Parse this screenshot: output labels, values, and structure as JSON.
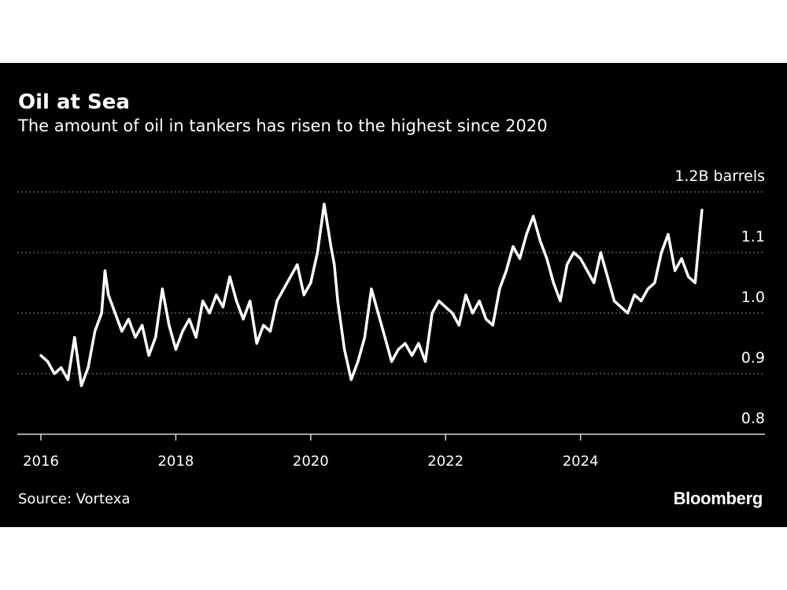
{
  "chart_data": {
    "type": "line",
    "title": "Oil at Sea",
    "subtitle": "The amount of oil in tankers has risen to the highest since 2020",
    "ylabel": "B barrels",
    "yunit_label": "1.2B barrels",
    "ylim": [
      0.8,
      1.2
    ],
    "yticks": [
      {
        "value": 0.8,
        "label": "0.8"
      },
      {
        "value": 0.9,
        "label": "0.9"
      },
      {
        "value": 1.0,
        "label": "1.0"
      },
      {
        "value": 1.1,
        "label": "1.1"
      },
      {
        "value": 1.2,
        "label": "1.2B barrels"
      }
    ],
    "xlim": [
      2016,
      2026.7
    ],
    "xticks": [
      {
        "value": 2016,
        "label": "2016"
      },
      {
        "value": 2018,
        "label": "2018"
      },
      {
        "value": 2020,
        "label": "2020"
      },
      {
        "value": 2022,
        "label": "2022"
      },
      {
        "value": 2024,
        "label": "2024"
      }
    ],
    "grid": true,
    "series": [
      {
        "name": "Oil in tankers",
        "color": "#ffffff",
        "x": [
          2016.0,
          2016.1,
          2016.2,
          2016.3,
          2016.4,
          2016.5,
          2016.6,
          2016.7,
          2016.8,
          2016.9,
          2016.95,
          2017.0,
          2017.1,
          2017.2,
          2017.3,
          2017.4,
          2017.5,
          2017.6,
          2017.7,
          2017.8,
          2017.9,
          2018.0,
          2018.1,
          2018.2,
          2018.3,
          2018.4,
          2018.5,
          2018.6,
          2018.7,
          2018.8,
          2018.9,
          2019.0,
          2019.1,
          2019.2,
          2019.3,
          2019.4,
          2019.5,
          2019.6,
          2019.7,
          2019.8,
          2019.9,
          2020.0,
          2020.1,
          2020.2,
          2020.3,
          2020.35,
          2020.4,
          2020.5,
          2020.6,
          2020.7,
          2020.8,
          2020.9,
          2021.0,
          2021.1,
          2021.2,
          2021.3,
          2021.4,
          2021.5,
          2021.6,
          2021.7,
          2021.8,
          2021.9,
          2022.0,
          2022.1,
          2022.2,
          2022.3,
          2022.4,
          2022.5,
          2022.6,
          2022.7,
          2022.8,
          2022.9,
          2023.0,
          2023.1,
          2023.2,
          2023.3,
          2023.4,
          2023.5,
          2023.6,
          2023.7,
          2023.8,
          2023.9,
          2024.0,
          2024.1,
          2024.2,
          2024.3,
          2024.4,
          2024.5,
          2024.6,
          2024.7,
          2024.8,
          2024.9,
          2025.0,
          2025.1,
          2025.2,
          2025.3,
          2025.4,
          2025.5,
          2025.6,
          2025.7,
          2025.8
        ],
        "values": [
          0.93,
          0.92,
          0.9,
          0.91,
          0.89,
          0.96,
          0.88,
          0.91,
          0.97,
          1.0,
          1.07,
          1.03,
          1.0,
          0.97,
          0.99,
          0.96,
          0.98,
          0.93,
          0.96,
          1.04,
          0.98,
          0.94,
          0.97,
          0.99,
          0.96,
          1.02,
          1.0,
          1.03,
          1.01,
          1.06,
          1.02,
          0.99,
          1.02,
          0.95,
          0.98,
          0.97,
          1.02,
          1.04,
          1.06,
          1.08,
          1.03,
          1.05,
          1.1,
          1.18,
          1.11,
          1.08,
          1.02,
          0.94,
          0.89,
          0.92,
          0.96,
          1.04,
          1.0,
          0.96,
          0.92,
          0.94,
          0.95,
          0.93,
          0.95,
          0.92,
          1.0,
          1.02,
          1.01,
          1.0,
          0.98,
          1.03,
          1.0,
          1.02,
          0.99,
          0.98,
          1.04,
          1.07,
          1.11,
          1.09,
          1.13,
          1.16,
          1.12,
          1.09,
          1.05,
          1.02,
          1.08,
          1.1,
          1.09,
          1.07,
          1.05,
          1.1,
          1.06,
          1.02,
          1.01,
          1.0,
          1.03,
          1.02,
          1.04,
          1.05,
          1.1,
          1.13,
          1.07,
          1.09,
          1.06,
          1.05,
          1.17
        ]
      }
    ]
  },
  "footer": {
    "source": "Source: Vortexa",
    "brand": "Bloomberg"
  }
}
